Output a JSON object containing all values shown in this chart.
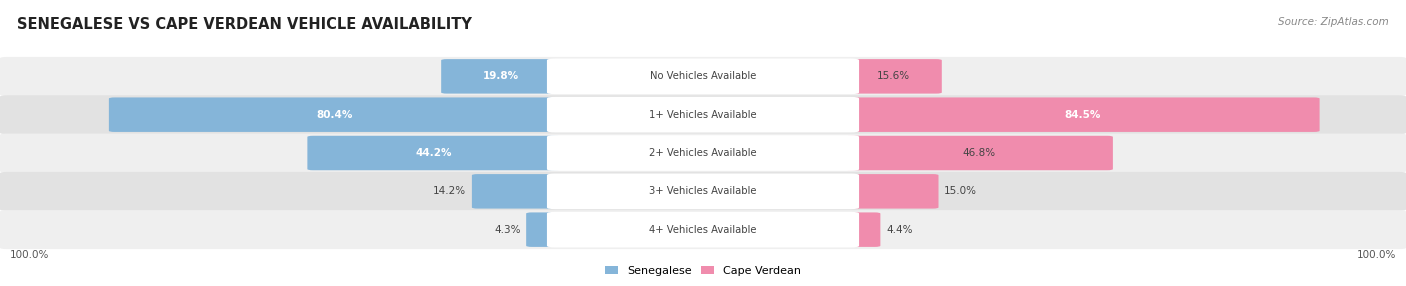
{
  "title": "SENEGALESE VS CAPE VERDEAN VEHICLE AVAILABILITY",
  "source": "Source: ZipAtlas.com",
  "categories": [
    "No Vehicles Available",
    "1+ Vehicles Available",
    "2+ Vehicles Available",
    "3+ Vehicles Available",
    "4+ Vehicles Available"
  ],
  "senegalese": [
    19.8,
    80.4,
    44.2,
    14.2,
    4.3
  ],
  "cape_verdean": [
    15.6,
    84.5,
    46.8,
    15.0,
    4.4
  ],
  "senegalese_color": "#85b5d9",
  "cape_verdean_color": "#f08cad",
  "row_bg_even": "#efefef",
  "row_bg_odd": "#e2e2e2",
  "label_color": "#444444",
  "title_color": "#222222",
  "source_color": "#888888",
  "legend_senegalese_color": "#85b5d9",
  "legend_cape_verdean_color": "#f08cad",
  "fig_width": 14.06,
  "fig_height": 2.86,
  "dpi": 100
}
